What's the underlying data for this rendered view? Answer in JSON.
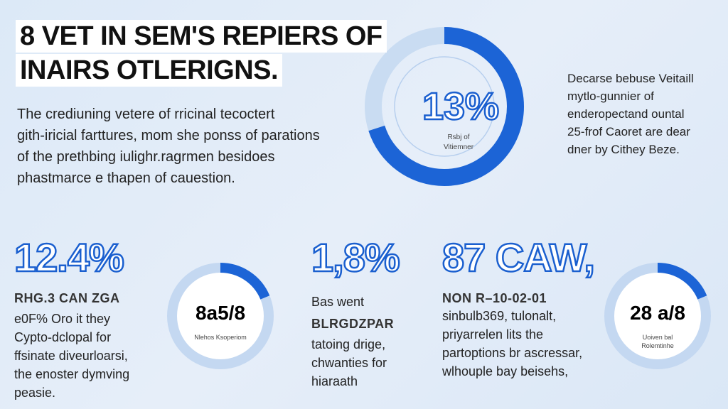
{
  "header": {
    "title": [
      "8 VET IN SEM'S REPIERS OF",
      "INAIRS OTLERIGNS."
    ]
  },
  "intro": [
    "The crediuning vetere of rricinal tecoctert",
    "gith-iricial farttures, mom she ponss of parations",
    "of the prethbing iulighr.ragrmen besidoes",
    "phastmarce e thapen of cauestion."
  ],
  "main_donut": {
    "value": "13%",
    "caption": [
      "Rsbj of",
      "Vitiemner"
    ]
  },
  "side_note": [
    "Decarse bebuse Veitaill",
    "mytlo-gunnier of",
    "enderopectand ountal",
    "25-frof Caoret are dear",
    "dner by Cithey Beze."
  ],
  "stats": [
    {
      "big": "12.4%",
      "heading": "RHG.3 CAN ZGA",
      "lines": [
        "e0F% Oro it they",
        "Cypto-dclopal for",
        "ffsinate diveurloarsi,",
        "the enoster dymving",
        "peasie."
      ],
      "donut": {
        "value": "8a5/8",
        "caption": [
          "Nlehos Ksoperiom"
        ]
      }
    },
    {
      "big": "1,8%",
      "heading": "BLRGDZPAR",
      "lines": [
        "Bas went",
        "tatoing drige,",
        "chwanties for",
        "hiaraath"
      ]
    },
    {
      "big": "87 CAW,",
      "heading": "NON R–10-02-01",
      "lines": [
        "sinbulb369, tulonalt,",
        "priyarrelen lits the",
        "partoptions br ascressar,",
        "wlhouple bay beisehs,"
      ],
      "donut": {
        "value": "28 a/8",
        "caption": [
          "Uoiven bal",
          "Rolemtinhe"
        ]
      }
    }
  ]
}
